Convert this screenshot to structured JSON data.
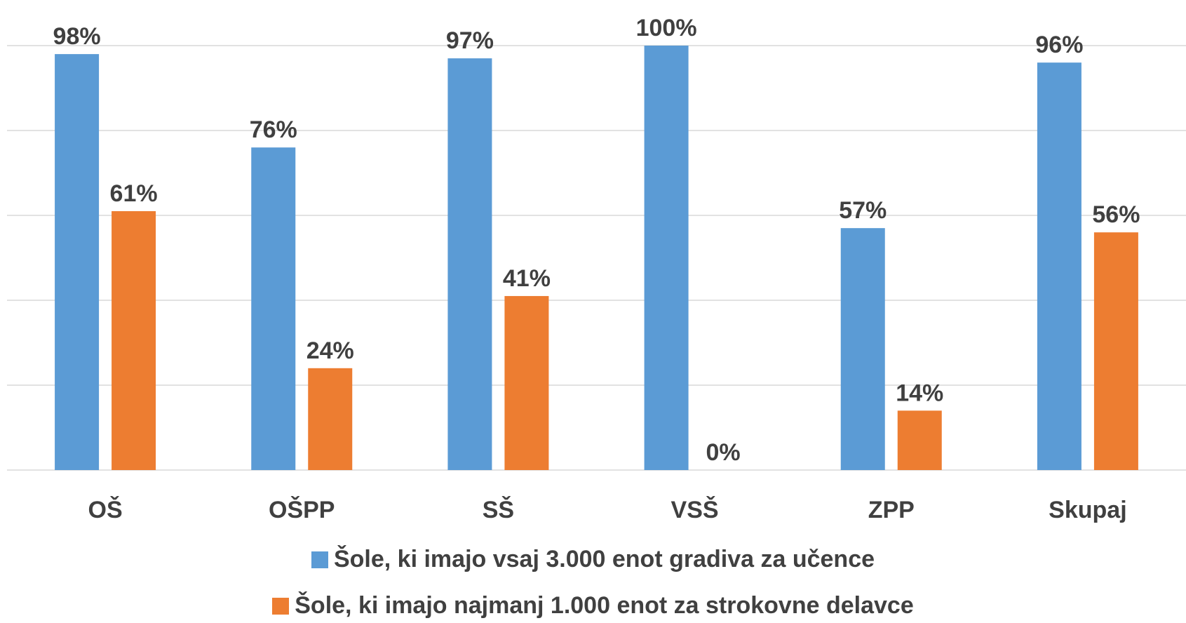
{
  "chart_data": {
    "type": "bar",
    "categories": [
      "OŠ",
      "OŠPP",
      "SŠ",
      "VSŠ",
      "ZPP",
      "Skupaj"
    ],
    "series": [
      {
        "name": "Šole, ki imajo vsaj 3.000 enot gradiva za učence",
        "values": [
          98,
          76,
          97,
          100,
          57,
          96
        ],
        "labels": [
          "98%",
          "76%",
          "97%",
          "100%",
          "57%",
          "96%"
        ],
        "color": "#5B9BD5"
      },
      {
        "name": "Šole, ki imajo najmanj 1.000 enot za strokovne delavce",
        "values": [
          61,
          24,
          41,
          0,
          14,
          56
        ],
        "labels": [
          "61%",
          "24%",
          "41%",
          "0%",
          "14%",
          "56%"
        ],
        "color": "#ED7D31"
      }
    ],
    "ylim": [
      0,
      100
    ],
    "grid": true,
    "legend": "bottom"
  }
}
